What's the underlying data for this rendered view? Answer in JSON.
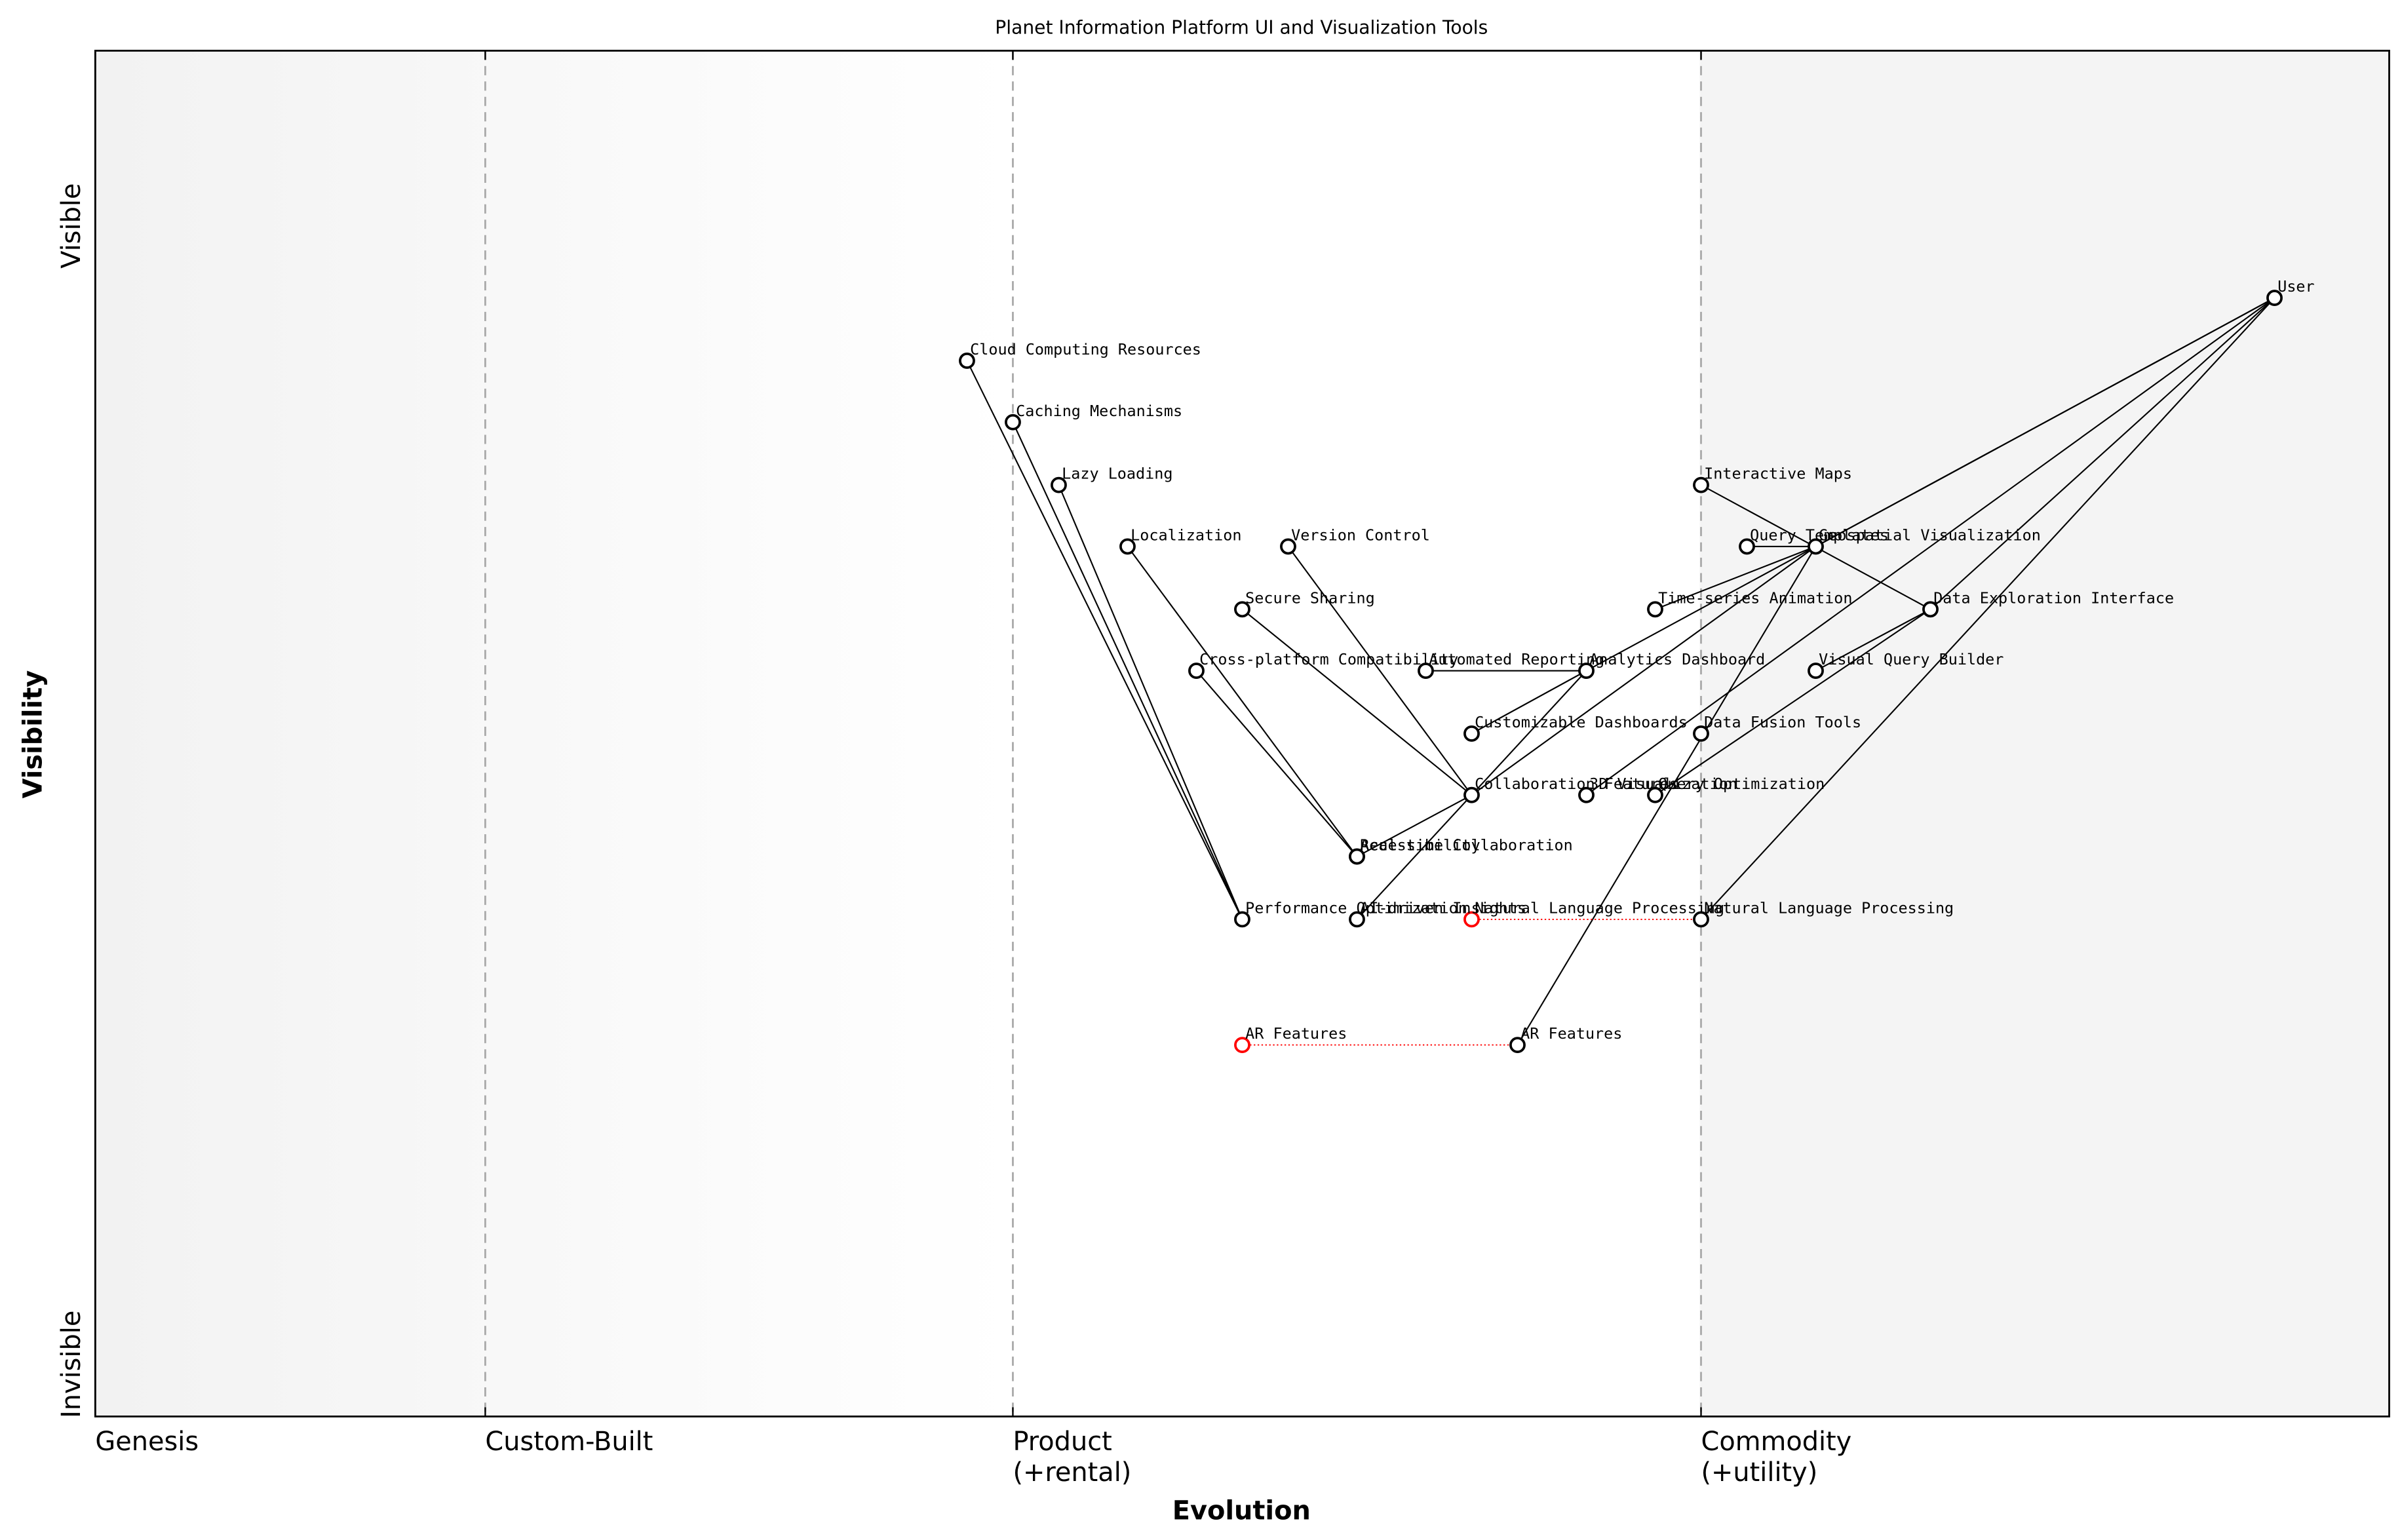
{
  "title": "Planet Information Platform UI and Visualization Tools",
  "x_axis": {
    "label": "Evolution"
  },
  "y_axis": {
    "label": "Visibility",
    "top": "Visible",
    "bottom": "Invisible"
  },
  "stages": [
    {
      "label": [
        "Genesis"
      ],
      "start": 0
    },
    {
      "label": [
        "Custom-Built"
      ],
      "start": 0.17
    },
    {
      "label": [
        "Product",
        "(+rental)"
      ],
      "start": 0.4
    },
    {
      "label": [
        "Commodity",
        "(+utility)"
      ],
      "start": 0.7
    }
  ],
  "nodes": [
    {
      "label": "User",
      "evolution": 0.95,
      "visibility": 0.819
    },
    {
      "label": "Cloud Computing Resources",
      "evolution": 0.38,
      "visibility": 0.773
    },
    {
      "label": "Caching Mechanisms",
      "evolution": 0.4,
      "visibility": 0.728
    },
    {
      "label": "Lazy Loading",
      "evolution": 0.42,
      "visibility": 0.682
    },
    {
      "label": "Localization",
      "evolution": 0.45,
      "visibility": 0.637
    },
    {
      "label": "Version Control",
      "evolution": 0.52,
      "visibility": 0.637
    },
    {
      "label": "Secure Sharing",
      "evolution": 0.5,
      "visibility": 0.591
    },
    {
      "label": "Cross-platform Compatibility",
      "evolution": 0.48,
      "visibility": 0.546
    },
    {
      "label": "Automated Reporting",
      "evolution": 0.58,
      "visibility": 0.546
    },
    {
      "label": "Analytics Dashboard",
      "evolution": 0.65,
      "visibility": 0.546
    },
    {
      "label": "Customizable Dashboards",
      "evolution": 0.6,
      "visibility": 0.5
    },
    {
      "label": "Collaboration Features",
      "evolution": 0.6,
      "visibility": 0.455
    },
    {
      "label": "3D Visualization",
      "evolution": 0.65,
      "visibility": 0.455
    },
    {
      "label": "Query Optimization",
      "evolution": 0.68,
      "visibility": 0.455
    },
    {
      "label": "Data Fusion Tools",
      "evolution": 0.7,
      "visibility": 0.5
    },
    {
      "label": "Interactive Maps",
      "evolution": 0.7,
      "visibility": 0.682
    },
    {
      "label": "Query Templates",
      "evolution": 0.72,
      "visibility": 0.637
    },
    {
      "label": "Geospatial Visualization",
      "evolution": 0.75,
      "visibility": 0.637
    },
    {
      "label": "Time-series Animation",
      "evolution": 0.68,
      "visibility": 0.591
    },
    {
      "label": "Data Exploration Interface",
      "evolution": 0.8,
      "visibility": 0.591
    },
    {
      "label": "Visual Query Builder",
      "evolution": 0.75,
      "visibility": 0.546
    },
    {
      "label": "Accessibility",
      "evolution": 0.55,
      "visibility": 0.41
    },
    {
      "label": "Real-time Collaboration",
      "evolution": 0.55,
      "visibility": 0.41
    },
    {
      "label": "Performance Optimization",
      "evolution": 0.5,
      "visibility": 0.364
    },
    {
      "label": "AI-driven Insights",
      "evolution": 0.55,
      "visibility": 0.364
    },
    {
      "label": "Natural Language Processing",
      "evolution": 0.7,
      "visibility": 0.364
    },
    {
      "label": "AR Features",
      "evolution": 0.62,
      "visibility": 0.272
    }
  ],
  "evolutions": [
    {
      "label": "Natural Language Processing",
      "evolution": 0.6,
      "visibility": 0.364
    },
    {
      "label": "AR Features",
      "evolution": 0.5,
      "visibility": 0.272
    }
  ],
  "edges": [
    [
      "User",
      "Geospatial Visualization"
    ],
    [
      "User",
      "Analytics Dashboard"
    ],
    [
      "User",
      "Data Exploration Interface"
    ],
    [
      "User",
      "3D Visualization"
    ],
    [
      "User",
      "Natural Language Processing"
    ],
    [
      "Geospatial Visualization",
      "Time-series Animation"
    ],
    [
      "Geospatial Visualization",
      "AR Features"
    ],
    [
      "Geospatial Visualization",
      "Collaboration Features"
    ],
    [
      "Interactive Maps",
      "Data Exploration Interface"
    ],
    [
      "Query Templates",
      "Geospatial Visualization"
    ],
    [
      "Data Exploration Interface",
      "Query Optimization"
    ],
    [
      "Data Exploration Interface",
      "Visual Query Builder"
    ],
    [
      "Analytics Dashboard",
      "Automated Reporting"
    ],
    [
      "Analytics Dashboard",
      "Customizable Dashboards"
    ],
    [
      "Analytics Dashboard",
      "AI-driven Insights"
    ],
    [
      "Collaboration Features",
      "Version Control"
    ],
    [
      "Collaboration Features",
      "Secure Sharing"
    ],
    [
      "Collaboration Features",
      "Real-time Collaboration"
    ],
    [
      "Accessibility",
      "Localization"
    ],
    [
      "Accessibility",
      "Cross-platform Compatibility"
    ],
    [
      "Performance Optimization",
      "Cloud Computing Resources"
    ],
    [
      "Performance Optimization",
      "Caching Mechanisms"
    ],
    [
      "Performance Optimization",
      "Lazy Loading"
    ]
  ]
}
